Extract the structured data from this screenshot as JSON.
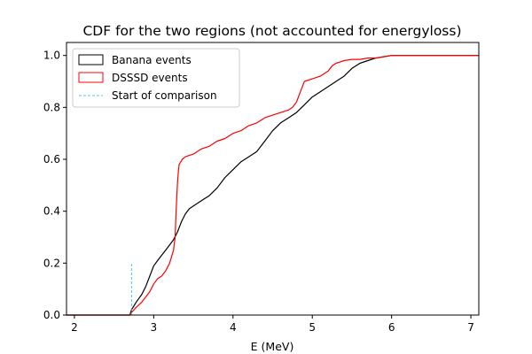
{
  "chart_data": {
    "type": "line",
    "title": "CDF for the two regions (not accounted for energyloss)",
    "xlabel": "E (MeV)",
    "ylabel": "",
    "xlim": [
      1.9,
      7.1
    ],
    "ylim": [
      0.0,
      1.05
    ],
    "x_ticks": [
      2,
      3,
      4,
      5,
      6,
      7
    ],
    "y_ticks": [
      0.0,
      0.2,
      0.4,
      0.6,
      0.8,
      1.0
    ],
    "x_tick_labels": [
      "2",
      "3",
      "4",
      "5",
      "6",
      "7"
    ],
    "y_tick_labels": [
      "0.0",
      "0.2",
      "0.4",
      "0.6",
      "0.8",
      "1.0"
    ],
    "grid": false,
    "legend_position": "top-left",
    "series": [
      {
        "name": "Banana events",
        "color": "#000000",
        "style": "solid",
        "legend_symbol": "box",
        "x": [
          1.9,
          2.7,
          2.72,
          2.78,
          2.85,
          2.9,
          2.95,
          3.0,
          3.05,
          3.1,
          3.15,
          3.2,
          3.25,
          3.3,
          3.35,
          3.4,
          3.45,
          3.5,
          3.6,
          3.7,
          3.8,
          3.9,
          4.0,
          4.1,
          4.2,
          4.3,
          4.4,
          4.5,
          4.6,
          4.7,
          4.8,
          4.9,
          5.0,
          5.1,
          5.2,
          5.3,
          5.4,
          5.5,
          5.6,
          5.7,
          5.8,
          5.9,
          6.0,
          6.1,
          7.1
        ],
        "y": [
          0.0,
          0.0,
          0.02,
          0.05,
          0.08,
          0.11,
          0.15,
          0.19,
          0.21,
          0.23,
          0.25,
          0.27,
          0.29,
          0.32,
          0.36,
          0.39,
          0.41,
          0.42,
          0.44,
          0.46,
          0.49,
          0.53,
          0.56,
          0.59,
          0.61,
          0.63,
          0.67,
          0.71,
          0.74,
          0.76,
          0.78,
          0.81,
          0.84,
          0.86,
          0.88,
          0.9,
          0.92,
          0.95,
          0.97,
          0.98,
          0.99,
          0.995,
          1.0,
          1.0,
          1.0
        ]
      },
      {
        "name": "DSSSD events",
        "color": "#ff0000",
        "style": "solid",
        "legend_symbol": "box",
        "x": [
          1.9,
          2.7,
          2.72,
          2.78,
          2.85,
          2.9,
          2.95,
          3.0,
          3.05,
          3.1,
          3.15,
          3.2,
          3.25,
          3.27,
          3.28,
          3.29,
          3.3,
          3.31,
          3.32,
          3.34,
          3.36,
          3.4,
          3.5,
          3.6,
          3.7,
          3.8,
          3.9,
          4.0,
          4.1,
          4.2,
          4.3,
          4.4,
          4.5,
          4.6,
          4.7,
          4.75,
          4.8,
          4.85,
          4.9,
          5.0,
          5.1,
          5.2,
          5.25,
          5.3,
          5.4,
          5.5,
          5.6,
          5.7,
          5.8,
          5.9,
          6.0,
          7.1
        ],
        "y": [
          0.0,
          0.0,
          0.01,
          0.03,
          0.05,
          0.07,
          0.09,
          0.12,
          0.14,
          0.15,
          0.17,
          0.2,
          0.25,
          0.3,
          0.38,
          0.45,
          0.51,
          0.55,
          0.58,
          0.59,
          0.6,
          0.61,
          0.62,
          0.64,
          0.65,
          0.67,
          0.68,
          0.7,
          0.71,
          0.73,
          0.74,
          0.76,
          0.77,
          0.78,
          0.79,
          0.8,
          0.82,
          0.86,
          0.9,
          0.91,
          0.92,
          0.94,
          0.96,
          0.97,
          0.98,
          0.985,
          0.985,
          0.99,
          0.99,
          0.995,
          1.0,
          1.0
        ]
      },
      {
        "name": "Start of comparison",
        "color": "#17becf",
        "style": "dashed",
        "legend_symbol": "line",
        "x": [
          2.72,
          2.72
        ],
        "y": [
          0.0,
          0.2
        ]
      }
    ]
  }
}
